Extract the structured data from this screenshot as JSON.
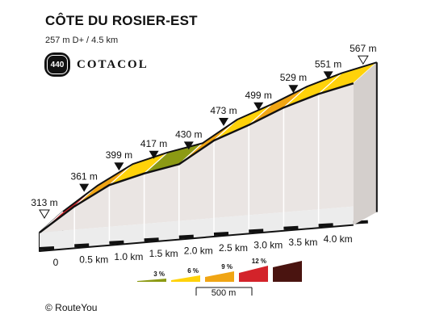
{
  "header": {
    "title": "CÔTE DU ROSIER-EST",
    "subtitle": "257 m D+ / 4.5 km"
  },
  "logo": {
    "number": "440",
    "text": "COTACOL"
  },
  "credit": "© RouteYou",
  "colors": {
    "grade_0_3": "#8c9a14",
    "grade_3_6": "#ffd20a",
    "grade_6_9": "#f0a514",
    "grade_9_12": "#d3232a",
    "grade_12_plus": "#4a1410",
    "wall": "#eae5e3",
    "base": "#ececec"
  },
  "chart_data": {
    "type": "area",
    "title": "CÔTE DU ROSIER-EST",
    "x_unit": "km",
    "y_unit": "m",
    "distance_km": [
      0,
      0.5,
      1.0,
      1.5,
      2.0,
      2.5,
      3.0,
      3.5,
      4.0,
      4.5
    ],
    "elevation_m": [
      313,
      361,
      399,
      417,
      430,
      473,
      499,
      529,
      551,
      567
    ],
    "elevation_labels": [
      "313 m",
      "361 m",
      "399 m",
      "417 m",
      "430 m",
      "473 m",
      "499 m",
      "529 m",
      "551 m",
      "567 m"
    ],
    "x_tick_labels": [
      "0",
      "0.5 km",
      "1.0 km",
      "1.5 km",
      "2.0 km",
      "2.5 km",
      "3.0 km",
      "3.5 km",
      "4.0 km"
    ],
    "segment_colors": [
      "#d3232a",
      "#f0a514",
      "#ffd20a",
      "#8c9a14",
      "#f0a514",
      "#ffd20a",
      "#f0a514",
      "#ffd20a",
      "#ffd20a"
    ],
    "legend": {
      "labels": [
        "3 %",
        "6 %",
        "9 %",
        "12 %"
      ],
      "scale_label": "500 m"
    }
  }
}
